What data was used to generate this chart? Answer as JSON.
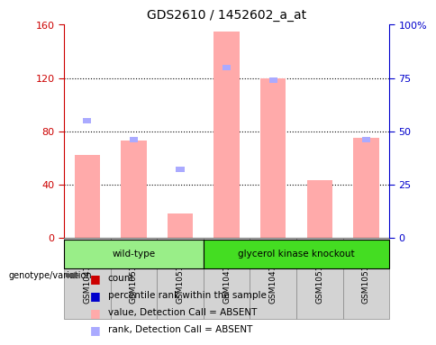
{
  "title": "GDS2610 / 1452602_a_at",
  "samples": [
    "GSM104738",
    "GSM105140",
    "GSM105141",
    "GSM104736",
    "GSM104740",
    "GSM105142",
    "GSM105144"
  ],
  "group_order": [
    "wild-type",
    "glycerol kinase knockout"
  ],
  "groups": {
    "wild-type": [
      0,
      1,
      2
    ],
    "glycerol kinase knockout": [
      3,
      4,
      5,
      6
    ]
  },
  "pink_bars": [
    62,
    73,
    18,
    155,
    120,
    43,
    75
  ],
  "blue_marks": [
    55,
    46,
    32,
    80,
    74,
    null,
    46
  ],
  "ylim_left": [
    0,
    160
  ],
  "ylim_right": [
    0,
    100
  ],
  "yticks_left": [
    0,
    40,
    80,
    120,
    160
  ],
  "yticks_right": [
    0,
    25,
    50,
    75,
    100
  ],
  "yticklabels_right": [
    "0",
    "25",
    "50",
    "75",
    "100%"
  ],
  "left_tick_color": "#cc0000",
  "right_tick_color": "#0000cc",
  "pink_color": "#ffaaaa",
  "blue_color": "#aaaaff",
  "legend_red": "#cc0000",
  "legend_blue": "#0000cc",
  "legend_pink": "#ffaaaa",
  "legend_lblue": "#aaaaff",
  "group_colors": {
    "wild-type": "#99ee88",
    "glycerol kinase knockout": "#44dd22"
  },
  "background_color": "#ffffff",
  "cell_bg": "#d3d3d3",
  "cell_border": "#888888"
}
